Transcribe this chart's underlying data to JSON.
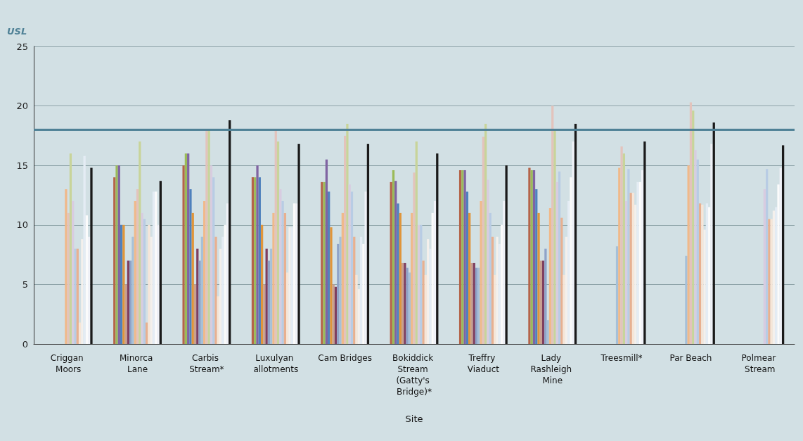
{
  "chart_data": {
    "type": "bar",
    "xlabel": "Site",
    "categories": [
      "Criggan Moors",
      "Minorca Lane",
      "Carbis Stream*",
      "Luxulyan allotments",
      "Cam Bridges",
      "Bokiddick Stream (Gatty's Bridge)*",
      "Treffry Viaduct",
      "Lady Rashleigh Mine",
      "Treesmill*",
      "Par Beach",
      "Polmear Stream"
    ],
    "series": [
      {
        "color": "#b5644a",
        "values": [
          null,
          14,
          15,
          14,
          13.6,
          13.6,
          14.6,
          14.8,
          null,
          null,
          null
        ]
      },
      {
        "color": "#9bbb59",
        "values": [
          null,
          15,
          16,
          14,
          13.6,
          14.6,
          14.6,
          14.6,
          null,
          null,
          null
        ]
      },
      {
        "color": "#8064a2",
        "values": [
          null,
          15,
          16,
          15,
          15.5,
          13.7,
          14.6,
          14.6,
          null,
          null,
          null
        ]
      },
      {
        "color": "#4f81bd",
        "values": [
          null,
          10,
          13,
          14,
          12.8,
          11.8,
          12.8,
          13,
          null,
          null,
          null
        ]
      },
      {
        "color": "#e0953a",
        "values": [
          null,
          10,
          11,
          10,
          9.8,
          11,
          11,
          11,
          null,
          null,
          null
        ]
      },
      {
        "color": "#c8a090",
        "values": [
          null,
          5,
          5,
          5,
          5,
          6.8,
          6.8,
          7,
          null,
          null,
          null
        ]
      },
      {
        "color": "#7f3f5f",
        "values": [
          null,
          7,
          8,
          8,
          4.8,
          6.8,
          6.8,
          7,
          null,
          null,
          null
        ]
      },
      {
        "color": "#8fa3c8",
        "values": [
          null,
          7,
          7,
          7,
          8.4,
          6.4,
          6.4,
          8,
          null,
          null,
          null
        ]
      },
      {
        "color": "#a6c0d8",
        "values": [
          null,
          9,
          9,
          8,
          9,
          6,
          6.4,
          2,
          8.2,
          7.4,
          null
        ]
      },
      {
        "color": "#f0b98a",
        "values": [
          13,
          12,
          12,
          11,
          11,
          11,
          12,
          11.4,
          14.8,
          15,
          null
        ]
      },
      {
        "color": "#e3c3bc",
        "values": [
          11,
          13,
          18,
          18,
          17.5,
          14.4,
          17.4,
          20,
          16.6,
          20.3,
          null
        ]
      },
      {
        "color": "#c8d49a",
        "values": [
          16,
          17,
          18,
          17,
          18.5,
          17,
          18.5,
          18,
          16,
          19.6,
          null
        ]
      },
      {
        "color": "#d8cce0",
        "values": [
          12,
          11,
          15,
          13,
          13.4,
          10,
          13.8,
          13.6,
          12,
          16.3,
          13
        ]
      },
      {
        "color": "#b8cce4",
        "values": [
          8,
          10.5,
          14,
          12,
          12.8,
          10,
          11,
          14.5,
          14.7,
          15.5,
          14.7
        ]
      },
      {
        "color": "#e8b090",
        "values": [
          8,
          1.8,
          9,
          11,
          9,
          7,
          9,
          10.6,
          12.7,
          11.8,
          10.5
        ]
      },
      {
        "color": "#f6e6d8",
        "values": [
          1.8,
          10,
          4,
          6,
          5.8,
          5.8,
          5.8,
          5.8,
          12.7,
          11.7,
          10.5
        ]
      },
      {
        "color": "#f4f0ec",
        "values": [
          8.8,
          9,
          8,
          9.8,
          4.6,
          8.8,
          9,
          9,
          11.7,
          9.6,
          11.2
        ]
      },
      {
        "color": "#e4ecf4",
        "values": [
          15.8,
          12.8,
          9,
          9.8,
          9,
          8,
          8.4,
          12,
          13.6,
          11.8,
          11.5
        ]
      },
      {
        "color": "#fbfbfb",
        "values": [
          10.8,
          12.8,
          10,
          11.8,
          8.4,
          11,
          10,
          14,
          13.6,
          11.5,
          13.4
        ]
      },
      {
        "color": "#f0f2f8",
        "values": [
          9,
          10,
          11.8,
          11.8,
          12.8,
          12,
          12,
          17,
          14.6,
          16.8,
          14.8
        ]
      },
      {
        "color": "#1a1a1a",
        "values": [
          14.8,
          13.7,
          18.8,
          16.8,
          16.8,
          16,
          15,
          18.5,
          17,
          18.6,
          16.7
        ]
      }
    ],
    "ylim": [
      0,
      25
    ],
    "yticks": [
      0,
      5,
      10,
      15,
      20,
      25
    ],
    "grid": "y",
    "ref_lines": [
      {
        "axis": "y",
        "value": 18,
        "label": "USL",
        "color": "#4f8196"
      }
    ]
  }
}
